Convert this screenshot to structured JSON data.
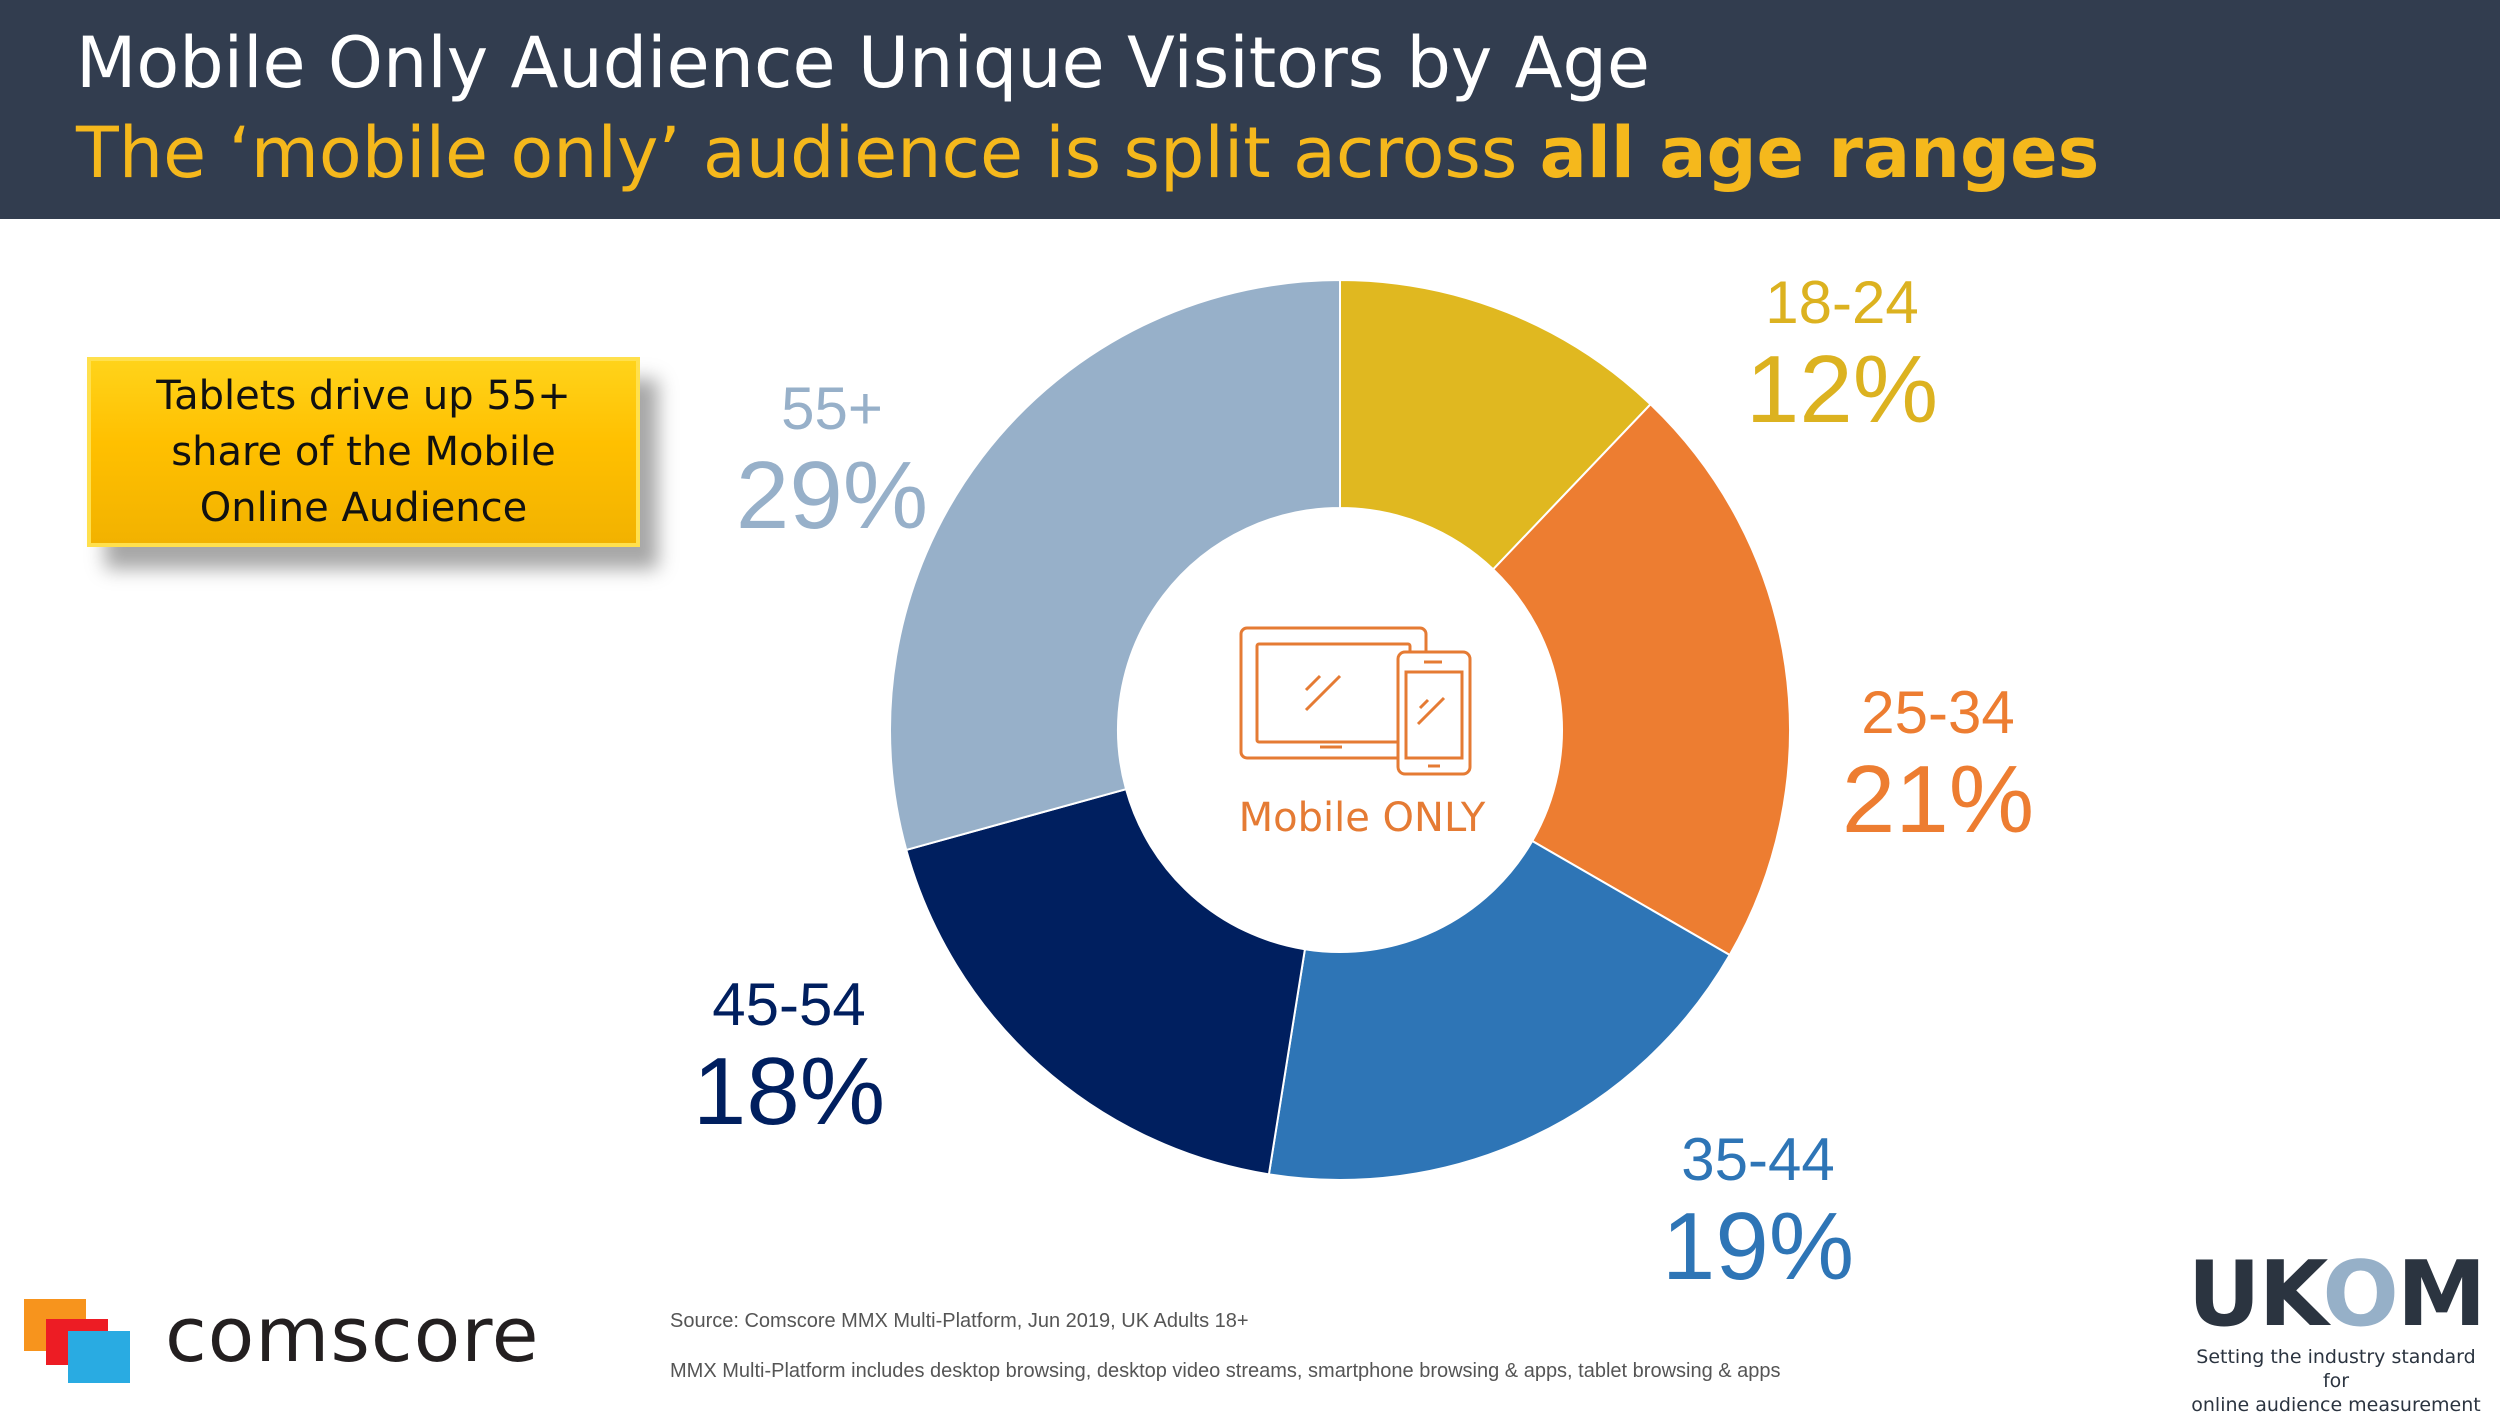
{
  "header": {
    "title": "Mobile Only Audience Unique Visitors by Age",
    "subtitle_prefix": "The ‘mobile only’ audience is split across ",
    "subtitle_emphasis": "all age ranges"
  },
  "callout": {
    "text": "Tablets drive up 55+ share of the Mobile Online Audience"
  },
  "center": {
    "label": "Mobile ONLY",
    "icon": "tablet-and-phone-icon"
  },
  "chart_data": {
    "type": "pie",
    "variant": "donut",
    "title": "Mobile Only Audience Unique Visitors by Age",
    "unit": "%",
    "categories": [
      "18-24",
      "25-34",
      "35-44",
      "45-54",
      "55+"
    ],
    "values": [
      12,
      21,
      19,
      18,
      29
    ],
    "labels": [
      "12%",
      "21%",
      "19%",
      "18%",
      "29%"
    ],
    "colors": [
      "#e0b820",
      "#ed7d31",
      "#2e75b6",
      "#001f5f",
      "#97b0c9"
    ],
    "start": "top, clockwise"
  },
  "footer": {
    "source": "Source: Comscore MMX Multi-Platform, Jun 2019, UK Adults 18+",
    "note": "MMX Multi-Platform includes desktop browsing, desktop video streams, smartphone browsing & apps, tablet browsing & apps",
    "brand_left": "comscore",
    "brand_right": "UKOM",
    "brand_right_tagline_1": "Setting the industry standard for",
    "brand_right_tagline_2": "online audience measurement"
  }
}
